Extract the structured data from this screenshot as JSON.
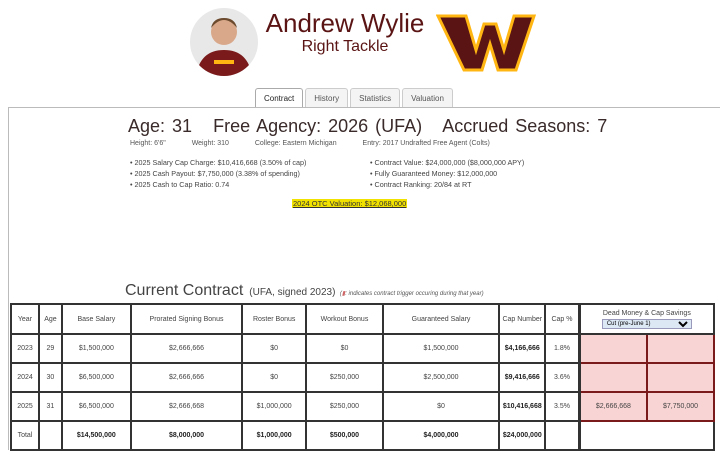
{
  "player": {
    "name": "Andrew Wylie",
    "position": "Right Tackle"
  },
  "colors": {
    "accent": "#5a1414",
    "logo_gold": "#ffb612",
    "highlight": "#f2e200",
    "dead_money_bg": "#f9d4d4"
  },
  "tabs": [
    {
      "label": "Contract",
      "active": true
    },
    {
      "label": "History"
    },
    {
      "label": "Statistics"
    },
    {
      "label": "Valuation"
    }
  ],
  "summary": {
    "age": "Age: 31",
    "free_agency": "Free Agency: 2026 (UFA)",
    "accrued": "Accrued Seasons: 7"
  },
  "bio": {
    "height": "Height: 6'6\"",
    "weight": "Weight: 310",
    "college": "College: Eastern Michigan",
    "entry": "Entry: 2017 Undrafted Free Agent (Colts)"
  },
  "bullets_left": [
    "2025 Salary Cap Charge: $10,416,668 (3.50% of cap)",
    "2025 Cash Payout: $7,750,000 (3.38% of spending)",
    "2025 Cash to Cap Ratio: 0.74"
  ],
  "bullets_right": [
    "Contract Value: $24,000,000 ($8,000,000 APY)",
    "Fully Guaranteed Money: $12,000,000",
    "Contract Ranking: 20/84 at RT"
  ],
  "otc_valuation": "2024 OTC Valuation: $12,068,000",
  "contract": {
    "title": "Current Contract",
    "subtitle": "(UFA, signed 2023)",
    "note": ": indicates contract trigger occuring during that year)",
    "headers": [
      "Year",
      "Age",
      "Base Salary",
      "Prorated Signing Bonus",
      "Roster Bonus",
      "Workout Bonus",
      "Guaranteed Salary",
      "Cap Number",
      "Cap %",
      "Dead Money & Cap Savings"
    ],
    "dropdown": "Cut (pre-June 1)",
    "rows": [
      [
        "2023",
        "29",
        "$1,500,000",
        "$2,666,666",
        "$0",
        "$0",
        "$1,500,000",
        "$4,166,666",
        "1.8%",
        "",
        ""
      ],
      [
        "2024",
        "30",
        "$6,500,000",
        "$2,666,666",
        "$0",
        "$250,000",
        "$2,500,000",
        "$9,416,666",
        "3.6%",
        "",
        ""
      ],
      [
        "2025",
        "31",
        "$6,500,000",
        "$2,666,668",
        "$1,000,000",
        "$250,000",
        "$0",
        "$10,416,668",
        "3.5%",
        "$2,666,668",
        "$7,750,000"
      ]
    ],
    "total": [
      "Total",
      "",
      "$14,500,000",
      "$8,000,000",
      "$1,000,000",
      "$500,000",
      "$4,000,000",
      "$24,000,000"
    ]
  }
}
